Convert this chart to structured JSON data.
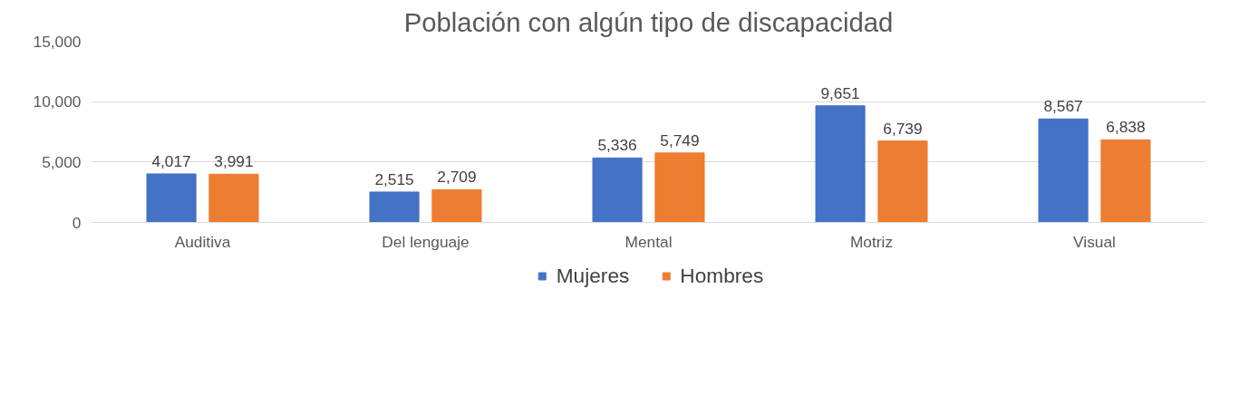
{
  "chart_data": {
    "type": "bar",
    "title": "Población con algún tipo de discapacidad",
    "categories": [
      "Auditiva",
      "Del lenguaje",
      "Mental",
      "Motriz",
      "Visual"
    ],
    "series": [
      {
        "name": "Mujeres",
        "color": "#4472c4",
        "values": [
          4017,
          2515,
          5336,
          9651,
          8567
        ],
        "value_labels": [
          "4,017",
          "2,515",
          "5,336",
          "9,651",
          "8,567"
        ]
      },
      {
        "name": "Hombres",
        "color": "#ed7d31",
        "values": [
          3991,
          2709,
          5749,
          6739,
          6838
        ],
        "value_labels": [
          "3,991",
          "2,709",
          "5,749",
          "6,739",
          "6,838"
        ]
      }
    ],
    "ylim": [
      0,
      15000
    ],
    "yticks": [
      0,
      {
        "value": 5000,
        "label": "5,000"
      },
      {
        "value": 10000,
        "label": "10,000"
      },
      {
        "value": 15000,
        "label": "15,000"
      }
    ],
    "grid": "y",
    "legend": "bottom"
  }
}
